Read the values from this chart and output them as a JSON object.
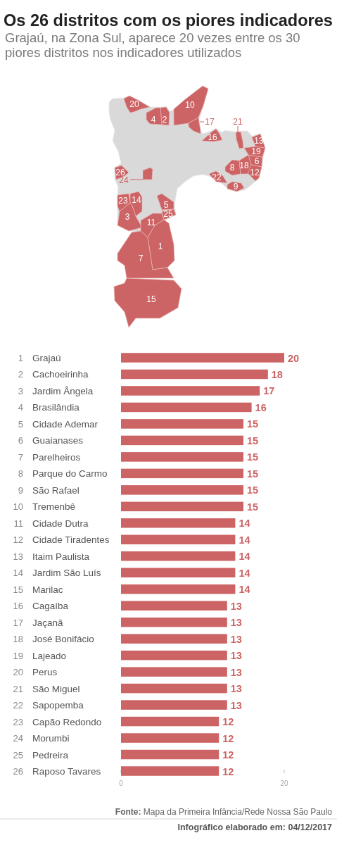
{
  "chart_data": {
    "type": "bar",
    "title": "Os 26 distritos com os piores indicadores",
    "subtitle": "Grajaú, na Zona Sul, aparece 20 vezes entre os 30 piores distritos nos indicadores utilizados",
    "orientation": "horizontal",
    "categories": [
      "Grajaú",
      "Cachoeirinha",
      "Jardim Ângela",
      "Brasilândia",
      "Cidade Ademar",
      "Guaianases",
      "Parelheiros",
      "Parque do Carmo",
      "São Rafael",
      "Tremenbê",
      "Cidade Dutra",
      "Cidade Tiradentes",
      "Itaim Paulista",
      "Jardim São Luís",
      "Marilac",
      "Cagaíba",
      "Jaçanã",
      "José Bonifácio",
      "Lajeado",
      "Perus",
      "São Miguel",
      "Sapopemba",
      "Capão Redondo",
      "Morumbi",
      "Pedreira",
      "Raposo Tavares"
    ],
    "y2_categories": [
      "1",
      "2",
      "3",
      "4",
      "5",
      "6",
      "7",
      "8",
      "9",
      "10",
      "11",
      "12",
      "13",
      "14",
      "15",
      "16",
      "17",
      "18",
      "19",
      "20",
      "21",
      "22",
      "23",
      "24",
      "25",
      "26"
    ],
    "values": [
      20,
      18,
      17,
      16,
      15,
      15,
      15,
      15,
      15,
      15,
      14,
      14,
      14,
      14,
      14,
      13,
      13,
      13,
      13,
      13,
      13,
      13,
      12,
      12,
      12,
      12
    ],
    "color": "#cc6364",
    "xlim": [
      0,
      20
    ],
    "xticks": [
      0,
      20
    ],
    "data_labels": true,
    "annotations": [
      "Fonte: Mapa da Primeira Infância/Rede Nossa São Paulo",
      "Infográfico elaborado em: 04/12/2017"
    ]
  }
}
